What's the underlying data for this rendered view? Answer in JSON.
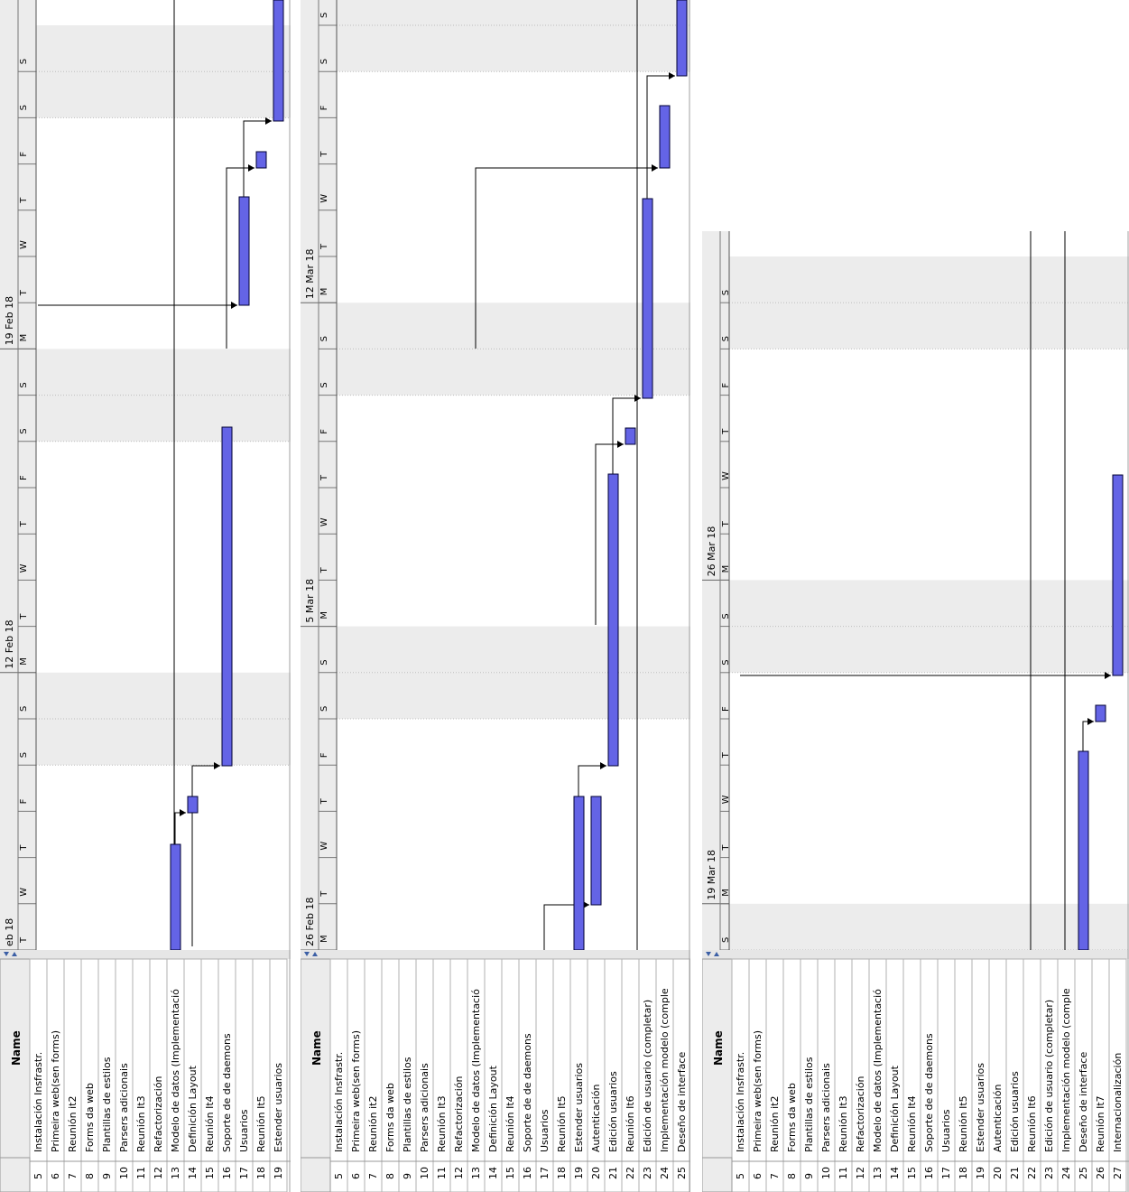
{
  "columns": {
    "num_header": "",
    "name_header": "Name"
  },
  "tasks": {
    "5": "Instalación Insfrastr.",
    "6": "Primeira web(sen forms)",
    "7": "Reunión it2",
    "8": "Forms da web",
    "9": "Plantillas de estilos",
    "10": "Parsers adicionais",
    "11": "Reunión It3",
    "12": "Refactorización",
    "13": "Modelo de datos (Implementació",
    "14": "Definición Layout",
    "15": "Reunión It4",
    "16": "Soporte de de daemons",
    "17": "Usuarios",
    "18": "Reunión It5",
    "19": "Estender usuarios",
    "20": "Autenticación",
    "21": "Edición usuarios",
    "22": "Reunión It6",
    "23": "Edición de usuario (completar)",
    "24": "Implementación modelo (comple",
    "25": "Deseño de interface",
    "26": "Reunión It7",
    "27": "Internacionalización"
  },
  "colors": {
    "task_bar": "#6464e6",
    "weekend_shade": "#ececec",
    "grid_line": "#9a9a9a"
  },
  "panels": [
    {
      "rows": [
        "5",
        "6",
        "7",
        "8",
        "9",
        "10",
        "11",
        "12",
        "13",
        "14",
        "15",
        "16",
        "17",
        "18",
        "19"
      ],
      "timeline": [
        {
          "week": "eb 18",
          "days": [
            "T",
            "W",
            "T",
            "F",
            "S",
            "S"
          ]
        },
        {
          "week": "12 Feb 18",
          "days": [
            "M",
            "T",
            "W",
            "T",
            "F",
            "S",
            "S"
          ]
        },
        {
          "week": "19 Feb 18",
          "days": [
            "M",
            "T",
            "W",
            "T",
            "F",
            "S",
            "S"
          ]
        }
      ]
    },
    {
      "rows": [
        "5",
        "6",
        "7",
        "8",
        "9",
        "10",
        "11",
        "12",
        "13",
        "14",
        "15",
        "16",
        "17",
        "18",
        "19",
        "20",
        "21",
        "22",
        "23",
        "24",
        "25"
      ],
      "timeline": [
        {
          "week": "26 Feb 18",
          "days": [
            "M",
            "T",
            "W",
            "T",
            "F",
            "S",
            "S"
          ]
        },
        {
          "week": "5 Mar 18",
          "days": [
            "M",
            "T",
            "W",
            "T",
            "F",
            "S",
            "S"
          ]
        },
        {
          "week": "12 Mar 18",
          "days": [
            "M",
            "T",
            "W",
            "T",
            "F",
            "S",
            "S"
          ]
        }
      ]
    },
    {
      "rows": [
        "5",
        "6",
        "7",
        "8",
        "9",
        "10",
        "11",
        "12",
        "13",
        "14",
        "15",
        "16",
        "17",
        "18",
        "19",
        "20",
        "21",
        "22",
        "23",
        "24",
        "25",
        "26",
        "27"
      ],
      "timeline": [
        {
          "week": "",
          "days": [
            "S"
          ]
        },
        {
          "week": "19 Mar 18",
          "days": [
            "M",
            "T",
            "W",
            "T",
            "F",
            "S",
            "S"
          ]
        },
        {
          "week": "26 Mar 18",
          "days": [
            "M",
            "T",
            "W",
            "T",
            "F",
            "S",
            "S"
          ]
        }
      ]
    }
  ]
}
